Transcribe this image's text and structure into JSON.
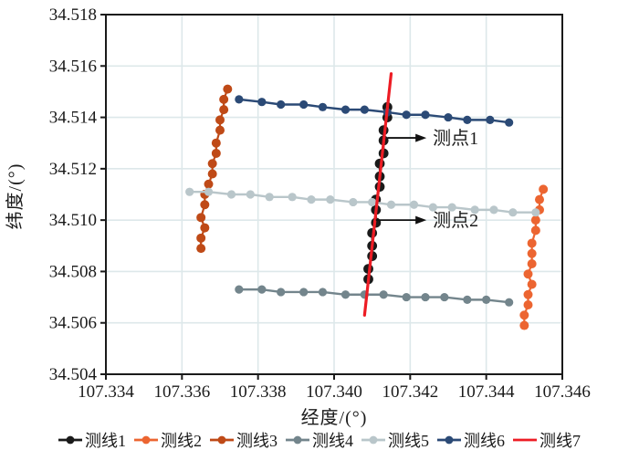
{
  "chart_data": {
    "type": "scatter",
    "title": "",
    "xlabel": "经度/(°)",
    "ylabel": "纬度/(°)",
    "xlim": [
      107.334,
      107.346
    ],
    "ylim": [
      34.504,
      34.518
    ],
    "x_ticks": [
      107.334,
      107.336,
      107.338,
      107.34,
      107.342,
      107.344,
      107.346
    ],
    "x_tick_labels": [
      "107.334",
      "107.336",
      "107.338",
      "107.340",
      "107.342",
      "107.344",
      "107.346"
    ],
    "y_ticks": [
      34.504,
      34.506,
      34.508,
      34.51,
      34.512,
      34.514,
      34.516,
      34.518
    ],
    "y_tick_labels": [
      "34.504",
      "34.506",
      "34.508",
      "34.510",
      "34.512",
      "34.514",
      "34.516",
      "34.518"
    ],
    "grid": true,
    "grid_color": "#dde8ea",
    "axis_color": "#1a1a1a",
    "legend_position": "bottom",
    "series": [
      {
        "name": "测线1",
        "color": "#1a1a1a",
        "marker": "circle",
        "marker_size": 5.4,
        "line_width": 2.2,
        "points": [
          [
            107.3414,
            34.5144
          ],
          [
            107.3414,
            34.514
          ],
          [
            107.3413,
            34.5135
          ],
          [
            107.3413,
            34.5131
          ],
          [
            107.3413,
            34.5126
          ],
          [
            107.3412,
            34.5122
          ],
          [
            107.3412,
            34.5117
          ],
          [
            107.3412,
            34.5113
          ],
          [
            107.3411,
            34.5108
          ],
          [
            107.3411,
            34.5104
          ],
          [
            107.3411,
            34.5099
          ],
          [
            107.341,
            34.5095
          ],
          [
            107.341,
            34.509
          ],
          [
            107.341,
            34.5086
          ],
          [
            107.3409,
            34.5081
          ],
          [
            107.3409,
            34.5077
          ]
        ]
      },
      {
        "name": "测线2",
        "color": "#ec6531",
        "marker": "circle",
        "marker_size": 5.0,
        "line_width": 2.2,
        "points": [
          [
            107.3455,
            34.5112
          ],
          [
            107.3454,
            34.5108
          ],
          [
            107.3454,
            34.5104
          ],
          [
            107.3453,
            34.51
          ],
          [
            107.3453,
            34.5096
          ],
          [
            107.3452,
            34.5091
          ],
          [
            107.3452,
            34.5087
          ],
          [
            107.3452,
            34.5083
          ],
          [
            107.3451,
            34.5079
          ],
          [
            107.3452,
            34.5075
          ],
          [
            107.3451,
            34.5071
          ],
          [
            107.3451,
            34.5067
          ],
          [
            107.345,
            34.5063
          ],
          [
            107.345,
            34.5059
          ]
        ]
      },
      {
        "name": "测线3",
        "color": "#bf4a17",
        "marker": "circle",
        "marker_size": 5.0,
        "line_width": 2.2,
        "points": [
          [
            107.3372,
            34.5151
          ],
          [
            107.3371,
            34.5147
          ],
          [
            107.3371,
            34.5143
          ],
          [
            107.337,
            34.5139
          ],
          [
            107.337,
            34.5135
          ],
          [
            107.3369,
            34.513
          ],
          [
            107.3369,
            34.5126
          ],
          [
            107.3368,
            34.5122
          ],
          [
            107.3368,
            34.5118
          ],
          [
            107.3367,
            34.5114
          ],
          [
            107.3366,
            34.511
          ],
          [
            107.3366,
            34.5106
          ],
          [
            107.3365,
            34.5101
          ],
          [
            107.3366,
            34.5097
          ],
          [
            107.3365,
            34.5093
          ],
          [
            107.3365,
            34.5089
          ]
        ]
      },
      {
        "name": "测线4",
        "color": "#73858c",
        "marker": "circle",
        "marker_size": 4.6,
        "line_width": 2.4,
        "points": [
          [
            107.3375,
            34.5073
          ],
          [
            107.3381,
            34.5073
          ],
          [
            107.3386,
            34.5072
          ],
          [
            107.3392,
            34.5072
          ],
          [
            107.3397,
            34.5072
          ],
          [
            107.3403,
            34.5071
          ],
          [
            107.3408,
            34.5071
          ],
          [
            107.3413,
            34.5071
          ],
          [
            107.3419,
            34.507
          ],
          [
            107.3424,
            34.507
          ],
          [
            107.3429,
            34.507
          ],
          [
            107.3435,
            34.5069
          ],
          [
            107.344,
            34.5069
          ],
          [
            107.3446,
            34.5068
          ]
        ]
      },
      {
        "name": "测线5",
        "color": "#b9c6ca",
        "marker": "circle",
        "marker_size": 4.6,
        "line_width": 2.4,
        "points": [
          [
            107.3362,
            34.5111
          ],
          [
            107.3367,
            34.5111
          ],
          [
            107.3373,
            34.511
          ],
          [
            107.3378,
            34.511
          ],
          [
            107.3383,
            34.5109
          ],
          [
            107.3389,
            34.5109
          ],
          [
            107.3394,
            34.5108
          ],
          [
            107.3399,
            34.5108
          ],
          [
            107.3405,
            34.5107
          ],
          [
            107.341,
            34.5107
          ],
          [
            107.3415,
            34.5106
          ],
          [
            107.3421,
            34.5106
          ],
          [
            107.3426,
            34.5105
          ],
          [
            107.3431,
            34.5105
          ],
          [
            107.3437,
            34.5104
          ],
          [
            107.3442,
            34.5104
          ],
          [
            107.3447,
            34.5103
          ],
          [
            107.3453,
            34.5103
          ]
        ]
      },
      {
        "name": "测线6",
        "color": "#2b4a76",
        "marker": "circle",
        "marker_size": 4.6,
        "line_width": 2.4,
        "points": [
          [
            107.3375,
            34.5147
          ],
          [
            107.3381,
            34.5146
          ],
          [
            107.3386,
            34.5145
          ],
          [
            107.3392,
            34.5145
          ],
          [
            107.3397,
            34.5144
          ],
          [
            107.3403,
            34.5143
          ],
          [
            107.3408,
            34.5143
          ],
          [
            107.3414,
            34.5142
          ],
          [
            107.3419,
            34.5141
          ],
          [
            107.3424,
            34.5141
          ],
          [
            107.343,
            34.514
          ],
          [
            107.3435,
            34.5139
          ],
          [
            107.3441,
            34.5139
          ],
          [
            107.3446,
            34.5138
          ]
        ]
      },
      {
        "name": "测线7",
        "color": "#ed1c24",
        "marker": "none",
        "marker_size": 0,
        "line_width": 3.2,
        "points": [
          [
            107.3415,
            34.5157
          ],
          [
            107.3408,
            34.5063
          ]
        ]
      }
    ],
    "annotations": [
      {
        "label": "测点1",
        "arrow_x": 107.3414,
        "arrow_y": 34.5132,
        "text_x": 107.3425
      },
      {
        "label": "测点2",
        "arrow_x": 107.3411,
        "arrow_y": 34.51,
        "text_x": 107.3425
      }
    ]
  }
}
